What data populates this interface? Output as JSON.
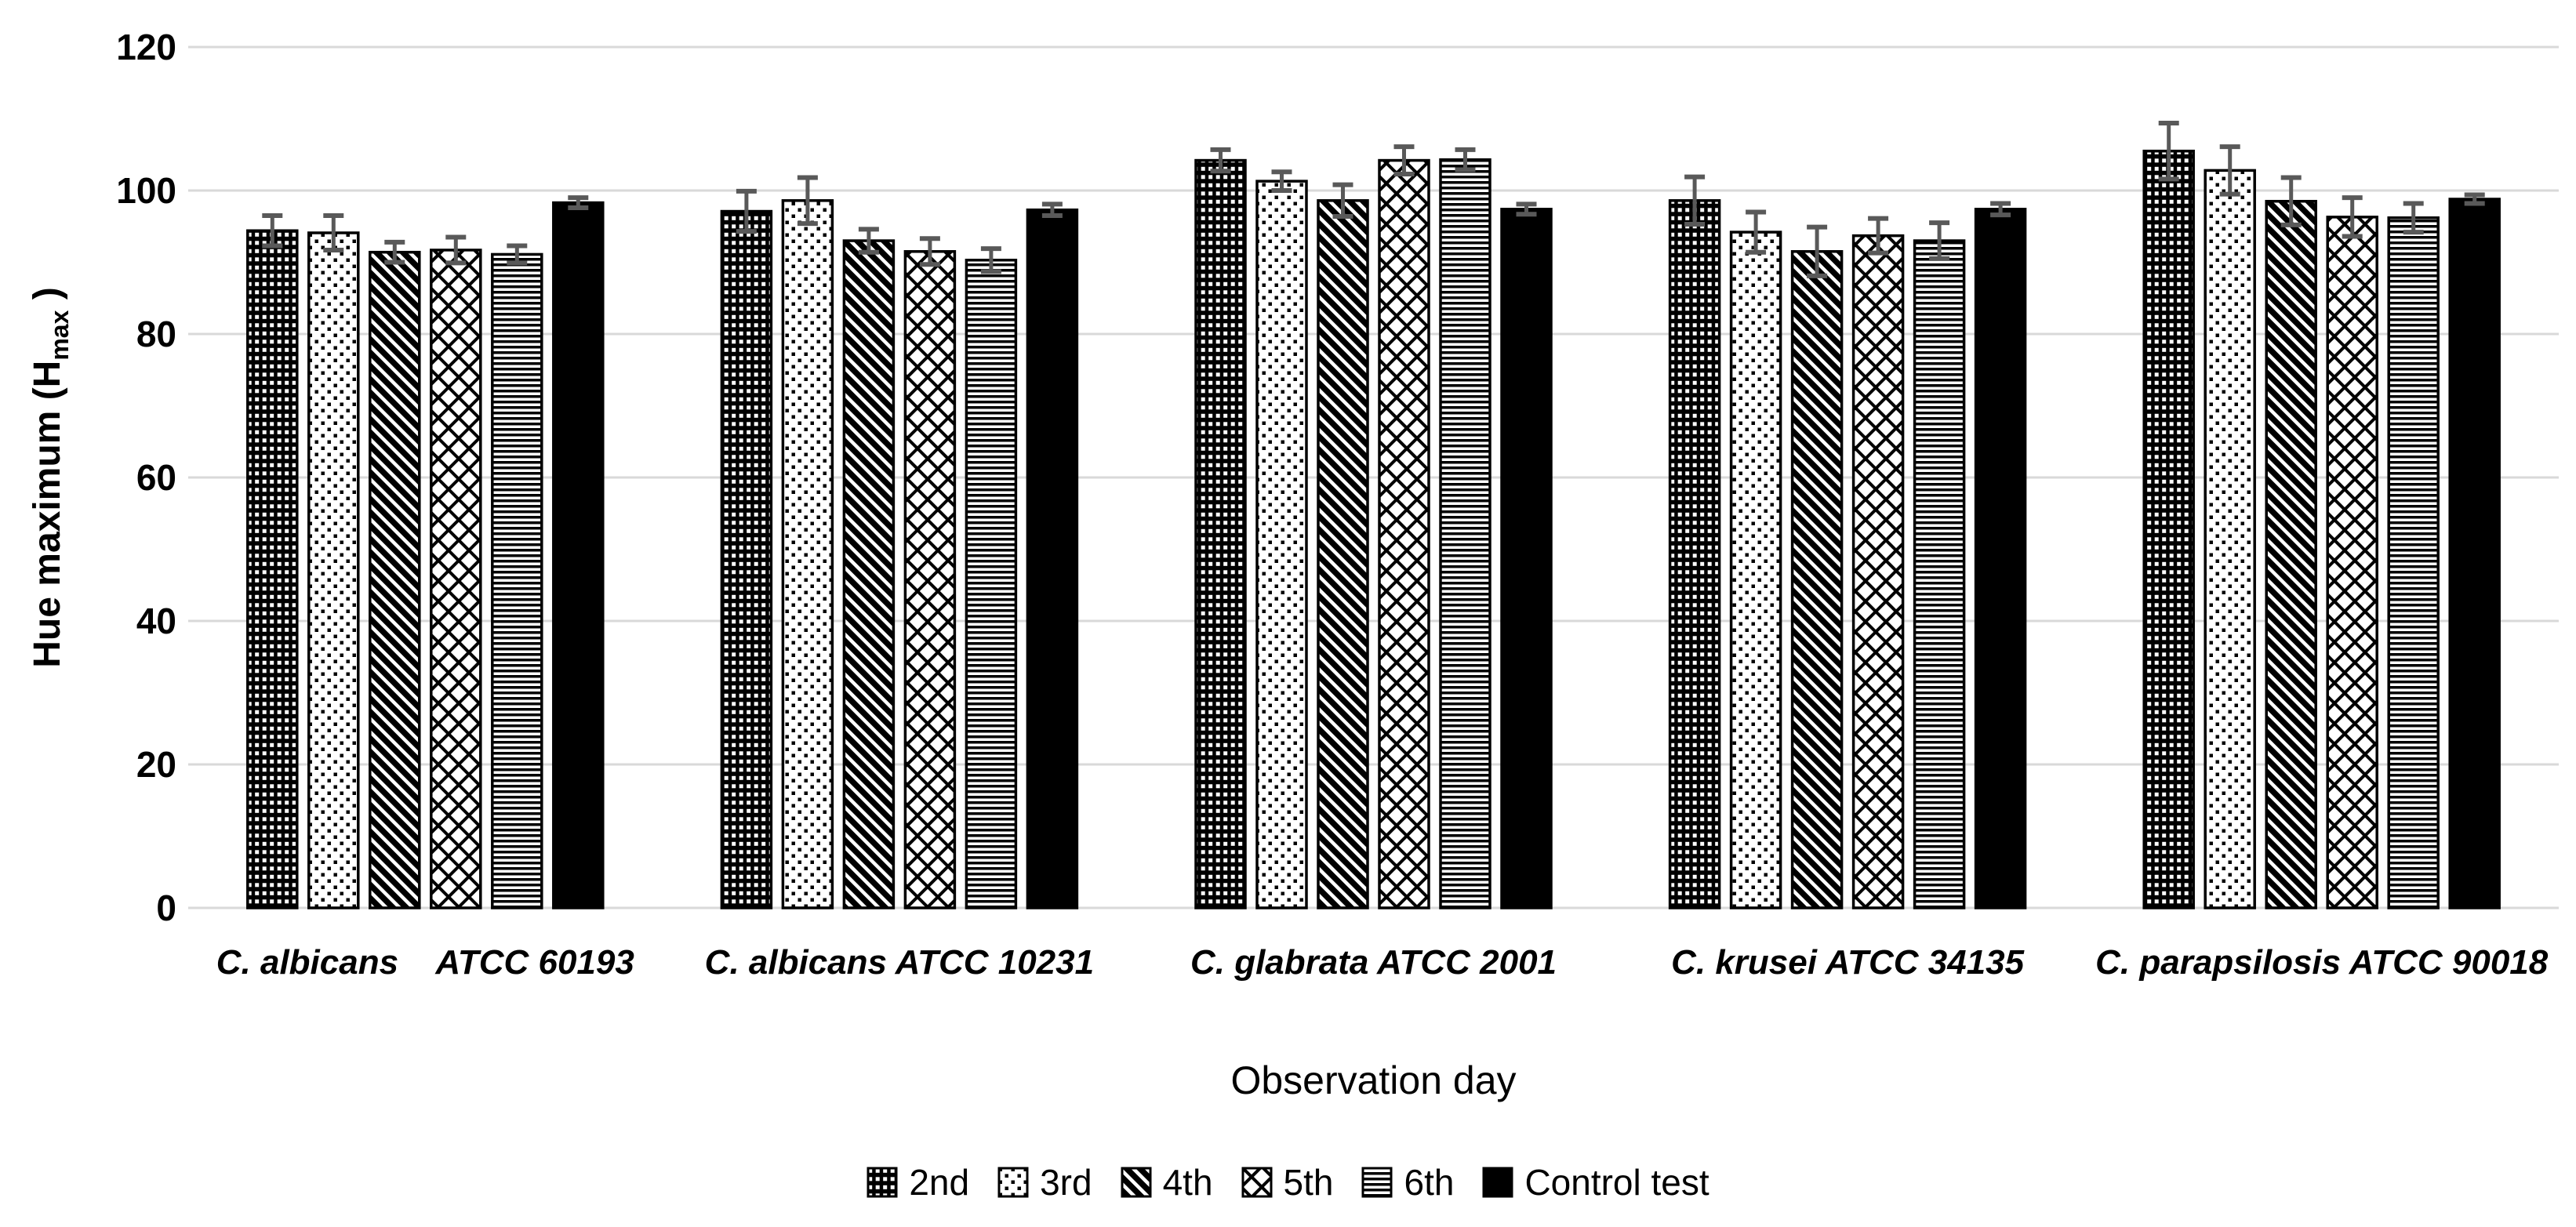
{
  "chart_data": {
    "type": "bar",
    "title": "",
    "xlabel": "Observation day",
    "ylabel": "Hue maximum (H_max )",
    "ylabel_parts": {
      "main": "Hue maximum (H",
      "sub": "max",
      "end": " )"
    },
    "ylim": [
      0,
      120
    ],
    "yticks": [
      0,
      20,
      40,
      60,
      80,
      100,
      120
    ],
    "grid": true,
    "legend_position": "bottom",
    "error_bars": true,
    "categories": [
      "C. albicans    ATCC 60193",
      "C. albicans ATCC 10231",
      "C. glabrata ATCC 2001",
      "C. krusei ATCC 34135",
      "C. parapsilosis ATCC 90018"
    ],
    "series": [
      {
        "name": "2nd",
        "pattern": "dense-grid",
        "values": [
          94.4,
          97.1,
          104.2,
          98.6,
          105.5
        ],
        "errors": [
          2.1,
          2.8,
          1.5,
          3.3,
          3.9
        ]
      },
      {
        "name": "3rd",
        "pattern": "dots",
        "values": [
          94.1,
          98.6,
          101.3,
          94.2,
          102.8
        ],
        "errors": [
          2.4,
          3.2,
          1.3,
          2.8,
          3.3
        ]
      },
      {
        "name": "4th",
        "pattern": "diagonal-stripes",
        "values": [
          91.4,
          93.0,
          98.6,
          91.5,
          98.5
        ],
        "errors": [
          1.4,
          1.6,
          2.2,
          3.4,
          3.3
        ]
      },
      {
        "name": "5th",
        "pattern": "diamond-crosshatch",
        "values": [
          91.7,
          91.5,
          104.2,
          93.7,
          96.3
        ],
        "errors": [
          1.8,
          1.8,
          1.9,
          2.4,
          2.7
        ]
      },
      {
        "name": "6th",
        "pattern": "horizontal-stripes",
        "values": [
          91.1,
          90.3,
          104.3,
          93.0,
          96.2
        ],
        "errors": [
          1.2,
          1.6,
          1.4,
          2.5,
          2.0
        ]
      },
      {
        "name": "Control test",
        "pattern": "solid",
        "values": [
          98.3,
          97.3,
          97.4,
          97.4,
          98.8
        ],
        "errors": [
          0.7,
          0.8,
          0.7,
          0.8,
          0.6
        ]
      }
    ]
  },
  "colors": {
    "bar": "#000000",
    "pattern_background": "#ffffff",
    "gridline": "#d9d9d9",
    "error_bar": "#595959",
    "background": "#ffffff",
    "text": "#000000"
  }
}
